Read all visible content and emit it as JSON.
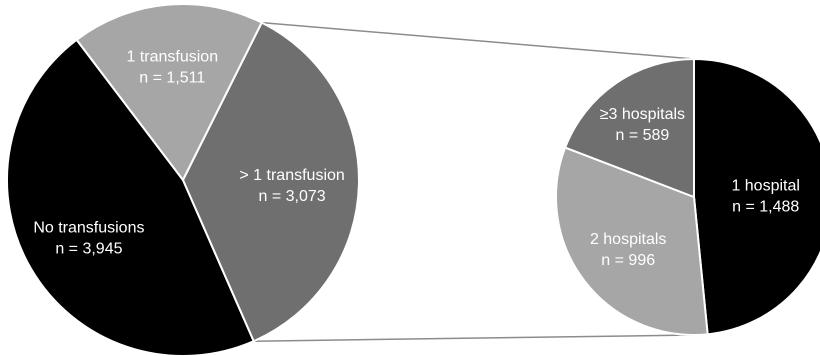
{
  "chart_data": [
    {
      "type": "pie",
      "title": "",
      "slices": [
        {
          "label_line1": "No transfusions",
          "label_line2": "n = 3,945",
          "value": 3945,
          "color": "#000000"
        },
        {
          "label_line1": "1 transfusion",
          "label_line2": "n = 1,511",
          "value": 1511,
          "color": "#a6a6a6"
        },
        {
          "label_line1": "> 1 transfusion",
          "label_line2": "n = 3,073",
          "value": 3073,
          "color": "#6f6f6f"
        }
      ]
    },
    {
      "type": "pie",
      "title": "",
      "breakdown_of": "> 1 transfusion",
      "slices": [
        {
          "label_line1": "1 hospital",
          "label_line2": "n = 1,488",
          "value": 1488,
          "color": "#000000"
        },
        {
          "label_line1": "2 hospitals",
          "label_line2": "n = 996",
          "value": 996,
          "color": "#a6a6a6"
        },
        {
          "label_line1": "≥3 hospitals",
          "label_line2": "n = 589",
          "value": 589,
          "color": "#6f6f6f"
        }
      ]
    }
  ]
}
